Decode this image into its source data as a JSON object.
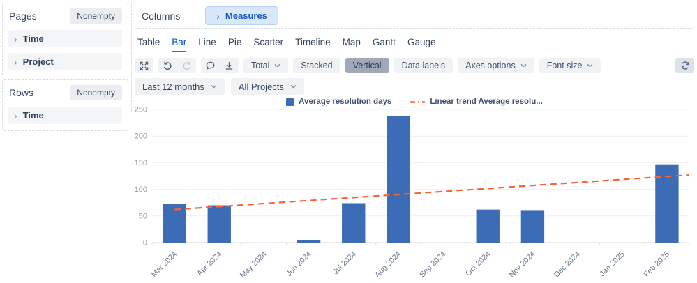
{
  "sidebar": {
    "pages": {
      "label": "Pages",
      "filter_button": "Nonempty",
      "items": [
        {
          "label": "Time"
        },
        {
          "label": "Project"
        }
      ]
    },
    "rows": {
      "label": "Rows",
      "filter_button": "Nonempty",
      "items": [
        {
          "label": "Time"
        }
      ]
    }
  },
  "columns": {
    "label": "Columns",
    "chips": [
      {
        "label": "Measures"
      }
    ]
  },
  "tabs": {
    "items": [
      {
        "label": "Table"
      },
      {
        "label": "Bar",
        "active": true
      },
      {
        "label": "Line"
      },
      {
        "label": "Pie"
      },
      {
        "label": "Scatter"
      },
      {
        "label": "Timeline"
      },
      {
        "label": "Map"
      },
      {
        "label": "Gantt"
      },
      {
        "label": "Gauge"
      }
    ]
  },
  "toolbar": {
    "icons": [
      "expand-icon",
      "undo-icon",
      "redo-icon",
      "comment-icon",
      "download-icon",
      "refresh-icon"
    ],
    "buttons": {
      "total": "Total",
      "stacked": "Stacked",
      "vertical": "Vertical",
      "data_labels": "Data labels",
      "axes_options": "Axes options",
      "font_size": "Font size"
    },
    "selected_button": "Vertical"
  },
  "filters": {
    "time_filter": "Last 12 months",
    "project_filter": "All Projects"
  },
  "colors": {
    "bar": "#3b6cb5",
    "trend": "#fb6234",
    "accent": "#0052cc",
    "chip_bg": "#d9e7fa"
  },
  "chart_data": {
    "type": "bar",
    "title": "",
    "categories": [
      "Mar 2024",
      "Apr 2024",
      "May 2024",
      "Jun 2024",
      "Jul 2024",
      "Aug 2024",
      "Sep 2024",
      "Oct 2024",
      "Nov 2024",
      "Dec 2024",
      "Jan 2025",
      "Feb 2025"
    ],
    "series": [
      {
        "name": "Average resolution days",
        "type": "bar",
        "color": "#3b6cb5",
        "values": [
          73,
          70,
          0,
          4,
          74,
          238,
          0,
          62,
          61,
          0,
          0,
          147
        ]
      },
      {
        "name": "Linear trend Average resolu...",
        "type": "line",
        "style": "dashed",
        "color": "#fb6234",
        "values": [
          62,
          68,
          74,
          80,
          86,
          91,
          97,
          103,
          109,
          115,
          121,
          127
        ],
        "trend_start": 62,
        "trend_end": 127
      }
    ],
    "xlabel": "",
    "ylabel": "",
    "ylim": [
      0,
      250
    ],
    "yticks": [
      0,
      50,
      100,
      150,
      200,
      250
    ],
    "legend_position": "top",
    "grid": true
  }
}
